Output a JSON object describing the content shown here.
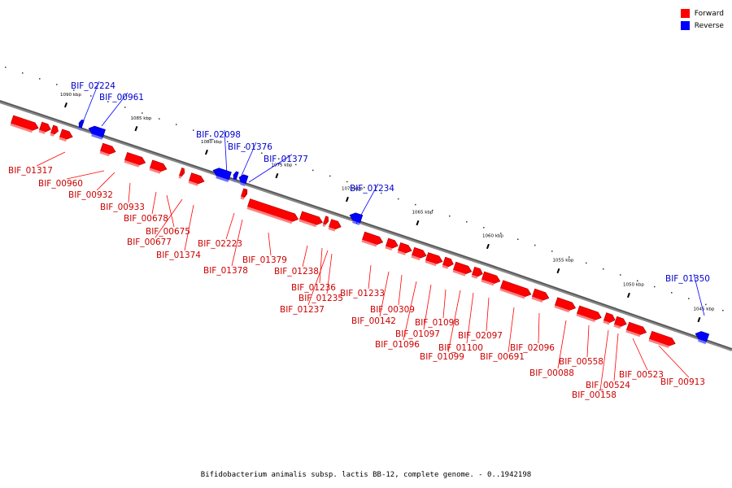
{
  "legend": {
    "forward": {
      "label": "Forward",
      "color": "#ff0000"
    },
    "reverse": {
      "label": "Reverse",
      "color": "#0000ff"
    }
  },
  "caption": "Bifidobacterium animalis subsp. lactis BB-12, complete genome. - 0..1942198",
  "scale": {
    "unit_label": "kbp",
    "ticks": [
      {
        "value": 1090,
        "label": "1090 kbp"
      },
      {
        "value": 1085,
        "label": "1085 kbp"
      },
      {
        "value": 1080,
        "label": "1080 kbp"
      },
      {
        "value": 1075,
        "label": "1075 kbp"
      },
      {
        "value": 1070,
        "label": "1070 kbp"
      },
      {
        "value": 1065,
        "label": "1065 kbp"
      },
      {
        "value": 1060,
        "label": "1060 kbp"
      },
      {
        "value": 1055,
        "label": "1055 kbp"
      },
      {
        "value": 1050,
        "label": "1050 kbp"
      },
      {
        "value": 1045,
        "label": "1045 kbp"
      }
    ]
  },
  "genes": [
    {
      "id": "BIF_01317",
      "strand": "forward"
    },
    {
      "id": "BIF_02224",
      "strand": "reverse"
    },
    {
      "id": "BIF_00961",
      "strand": "reverse"
    },
    {
      "id": "BIF_00960",
      "strand": "forward"
    },
    {
      "id": "BIF_00932",
      "strand": "forward"
    },
    {
      "id": "BIF_00933",
      "strand": "forward"
    },
    {
      "id": "BIF_00678",
      "strand": "forward"
    },
    {
      "id": "BIF_00675",
      "strand": "forward"
    },
    {
      "id": "BIF_00677",
      "strand": "forward"
    },
    {
      "id": "BIF_01374",
      "strand": "forward"
    },
    {
      "id": "BIF_02098",
      "strand": "reverse"
    },
    {
      "id": "BIF_01376",
      "strand": "reverse"
    },
    {
      "id": "BIF_01377",
      "strand": "reverse"
    },
    {
      "id": "BIF_02223",
      "strand": "forward"
    },
    {
      "id": "BIF_01378",
      "strand": "forward"
    },
    {
      "id": "BIF_01379",
      "strand": "forward"
    },
    {
      "id": "BIF_01238",
      "strand": "forward"
    },
    {
      "id": "BIF_01236",
      "strand": "forward"
    },
    {
      "id": "BIF_01235",
      "strand": "forward"
    },
    {
      "id": "BIF_01237",
      "strand": "forward"
    },
    {
      "id": "BIF_01234",
      "strand": "reverse"
    },
    {
      "id": "BIF_01233",
      "strand": "forward"
    },
    {
      "id": "BIF_00309",
      "strand": "forward"
    },
    {
      "id": "BIF_00142",
      "strand": "forward"
    },
    {
      "id": "BIF_01098",
      "strand": "forward"
    },
    {
      "id": "BIF_01097",
      "strand": "forward"
    },
    {
      "id": "BIF_01096",
      "strand": "forward"
    },
    {
      "id": "BIF_01100",
      "strand": "forward"
    },
    {
      "id": "BIF_01099",
      "strand": "forward"
    },
    {
      "id": "BIF_02097",
      "strand": "forward"
    },
    {
      "id": "BIF_00691",
      "strand": "forward"
    },
    {
      "id": "BIF_02096",
      "strand": "forward"
    },
    {
      "id": "BIF_00088",
      "strand": "forward"
    },
    {
      "id": "BIF_00558",
      "strand": "forward"
    },
    {
      "id": "BIF_00524",
      "strand": "forward"
    },
    {
      "id": "BIF_00158",
      "strand": "forward"
    },
    {
      "id": "BIF_00523",
      "strand": "forward"
    },
    {
      "id": "BIF_00913",
      "strand": "forward"
    },
    {
      "id": "BIF_01350",
      "strand": "reverse"
    }
  ]
}
